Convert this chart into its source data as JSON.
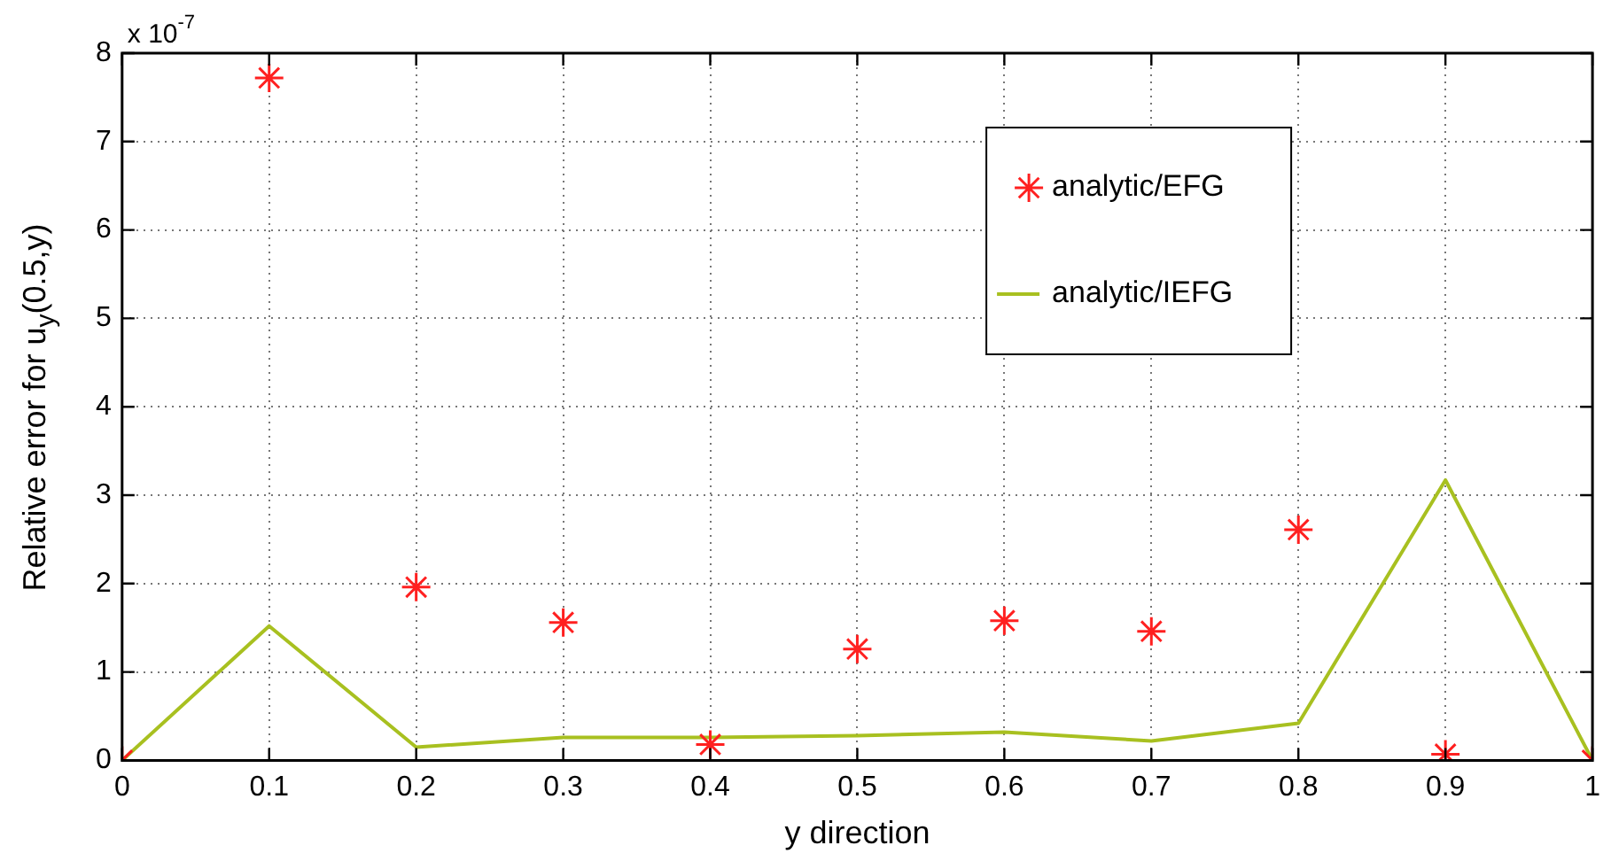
{
  "chart_data": {
    "type": "scatter",
    "xlabel": "y direction",
    "ylabel": "Relative error for u$_{y}$(0.5,y)",
    "annotations": [
      "x 10$^{-7}$"
    ],
    "x": [
      0,
      0.1,
      0.2,
      0.3,
      0.4,
      0.5,
      0.6,
      0.7,
      0.8,
      0.9,
      1
    ],
    "series": [
      {
        "name": "analytic/EFG",
        "marker": "cross",
        "color": "#ff2020",
        "values": [
          0,
          7.72,
          1.96,
          1.56,
          0.18,
          1.26,
          1.58,
          1.46,
          2.61,
          0.07,
          0
        ]
      },
      {
        "name": "analytic/IEFG",
        "type": "line",
        "marker": "none",
        "color": "#a8c020",
        "values": [
          0,
          1.52,
          0.15,
          0.26,
          0.26,
          0.28,
          0.32,
          0.22,
          0.42,
          3.17,
          0
        ]
      }
    ],
    "xlim": [
      0,
      1
    ],
    "xticks": [
      0,
      0.1,
      0.2,
      0.3,
      0.4,
      0.5,
      0.6,
      0.7,
      0.8,
      0.9,
      1
    ],
    "ylim": [
      0,
      8
    ],
    "yticks": [
      0,
      1,
      2,
      3,
      4,
      5,
      6,
      7,
      8
    ],
    "grid": true,
    "legend": "top right"
  }
}
